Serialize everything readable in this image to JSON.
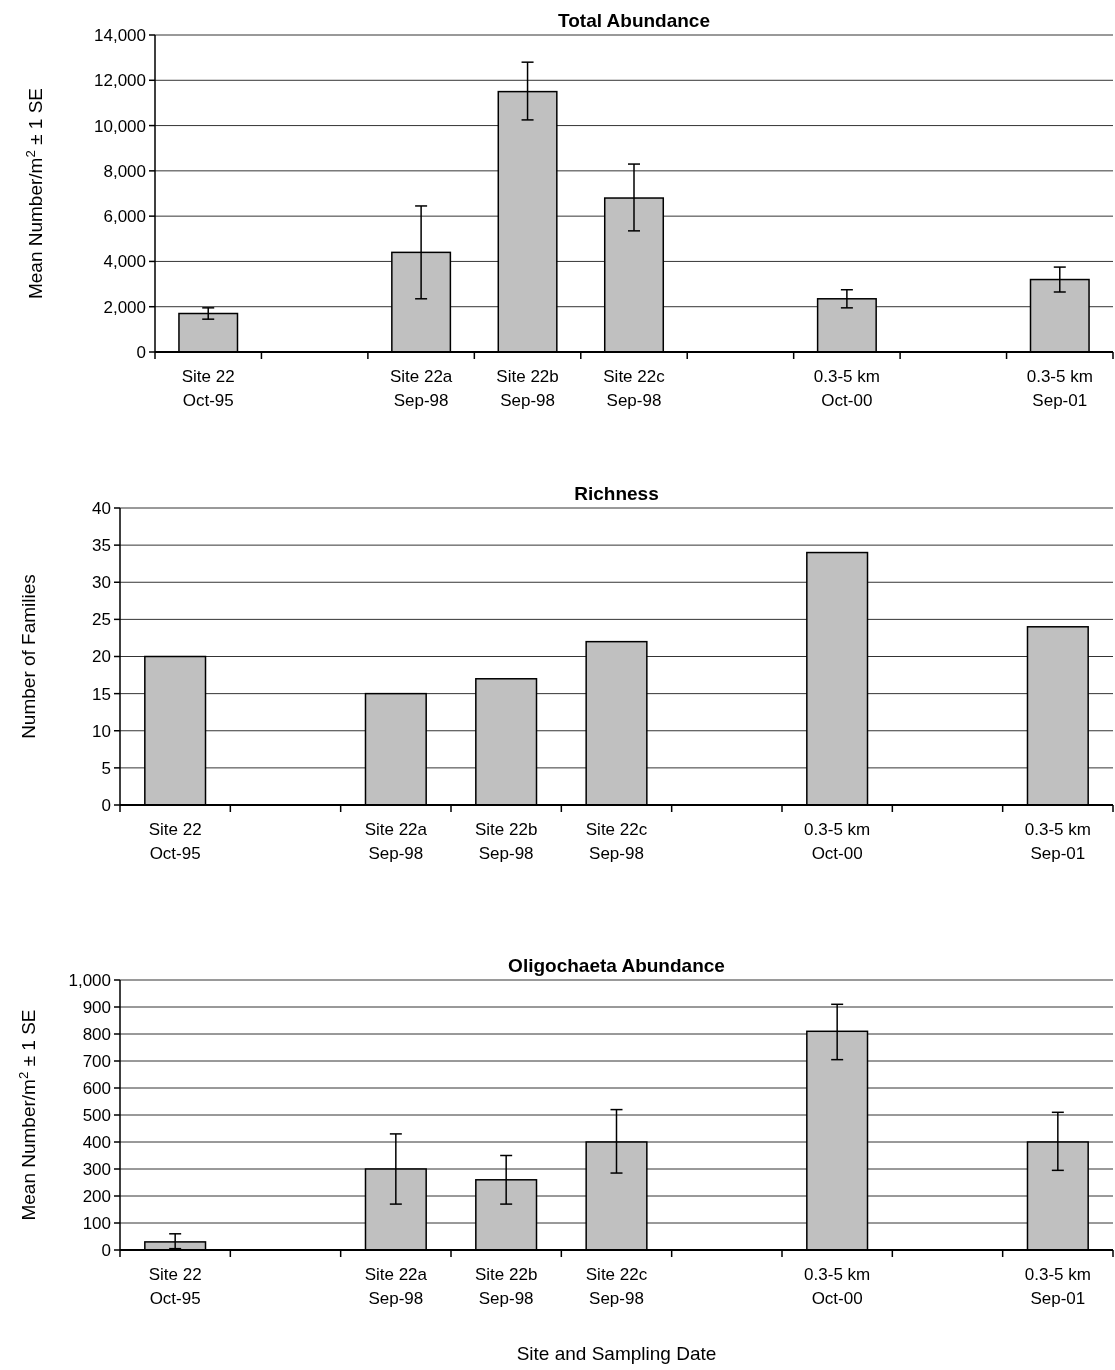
{
  "chart_data": [
    {
      "type": "bar",
      "title": "Total Abundance",
      "ylabel": "Mean Number/m$^{2}$ ± 1 SE",
      "categories": [
        "Site 22\nOct-95",
        null,
        "Site 22a\nSep-98",
        "Site 22b\nSep-98",
        "Site 22c\nSep-98",
        null,
        "0.3-5 km\nOct-00",
        null,
        "0.3-5 km\nSep-01"
      ],
      "color": "#c0c0c0",
      "values": [
        1700,
        null,
        4400,
        11500,
        6800,
        null,
        2350,
        null,
        3200
      ],
      "errors": [
        [
          1450,
          1950
        ],
        null,
        [
          2350,
          6450
        ],
        [
          10250,
          12800
        ],
        [
          5350,
          8300
        ],
        null,
        [
          1950,
          2750
        ],
        null,
        [
          2650,
          3750
        ]
      ],
      "ylim": [
        0,
        14000
      ],
      "yticks": [
        0,
        {
          "value": 2000,
          "label": "2,000"
        },
        {
          "value": 4000,
          "label": "4,000"
        },
        {
          "value": 6000,
          "label": "6,000"
        },
        {
          "value": 8000,
          "label": "8,000"
        },
        {
          "value": 10000,
          "label": "10,000"
        },
        {
          "value": 12000,
          "label": "12,000"
        },
        {
          "value": 14000,
          "label": "14,000"
        }
      ],
      "grid": "y"
    },
    {
      "type": "bar",
      "title": "Richness",
      "ylabel": "Number of Families",
      "categories": [
        "Site 22\nOct-95",
        null,
        "Site 22a\nSep-98",
        "Site 22b\nSep-98",
        "Site 22c\nSep-98",
        null,
        "0.3-5 km\nOct-00",
        null,
        "0.3-5 km\nSep-01"
      ],
      "color": "#c0c0c0",
      "values": [
        20,
        null,
        15,
        17,
        22,
        null,
        34,
        null,
        24
      ],
      "ylim": [
        0,
        40
      ],
      "yticks": [
        0,
        5,
        10,
        15,
        20,
        25,
        30,
        35,
        40
      ],
      "grid": "y"
    },
    {
      "type": "bar",
      "title": "Oligochaeta Abundance",
      "ylabel": "Mean Number/m$^{2}$ ± 1 SE",
      "xlabel": "Site and Sampling Date",
      "categories": [
        "Site 22\nOct-95",
        null,
        "Site 22a\nSep-98",
        "Site 22b\nSep-98",
        "Site 22c\nSep-98",
        null,
        "0.3-5 km\nOct-00",
        null,
        "0.3-5 km\nSep-01"
      ],
      "color": "#c0c0c0",
      "values": [
        30,
        null,
        300,
        260,
        400,
        null,
        810,
        null,
        400
      ],
      "errors": [
        [
          5,
          60
        ],
        null,
        [
          170,
          430
        ],
        [
          170,
          350
        ],
        [
          285,
          520
        ],
        null,
        [
          705,
          910
        ],
        null,
        [
          295,
          510
        ]
      ],
      "ylim": [
        0,
        1000
      ],
      "yticks": [
        0,
        100,
        200,
        300,
        400,
        500,
        600,
        700,
        800,
        900,
        {
          "value": 1000,
          "label": "1,000"
        }
      ],
      "grid": "y"
    }
  ]
}
